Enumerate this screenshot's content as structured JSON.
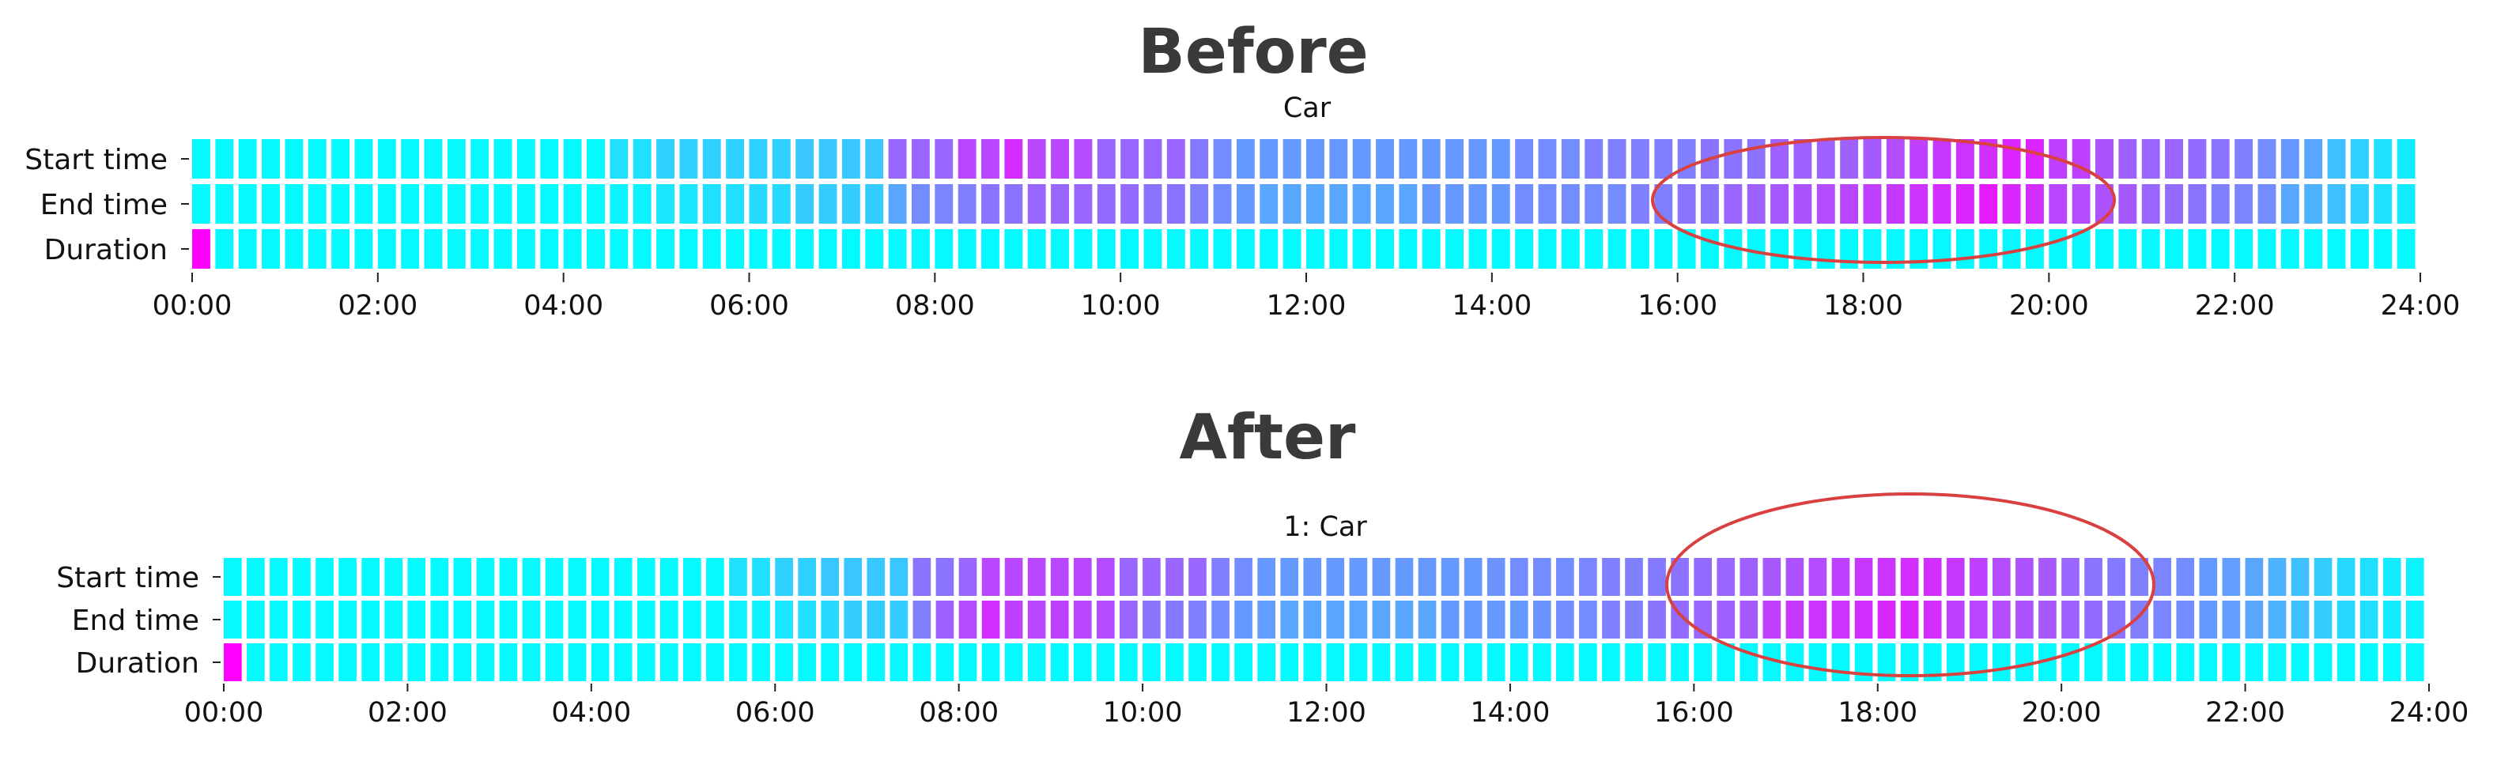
{
  "chart_data": [
    {
      "type": "heatmap",
      "title": "Before",
      "subtitle": "Car",
      "rows": [
        "Start time",
        "End time",
        "Duration"
      ],
      "xlabel": "",
      "ylabel": "",
      "x_tick_labels": [
        "00:00",
        "02:00",
        "04:00",
        "06:00",
        "08:00",
        "10:00",
        "12:00",
        "14:00",
        "16:00",
        "18:00",
        "20:00",
        "22:00",
        "24:00"
      ],
      "x_range": [
        "00:00",
        "24:00"
      ],
      "bins": 96,
      "colormap": "cool",
      "colors": {
        "low": "#00ffff",
        "high": "#ff00ff"
      },
      "highlight": {
        "shape": "ellipse",
        "color": "#d94040",
        "x_range": [
          "15:50",
          "20:45"
        ],
        "rows": [
          "Start time",
          "End time"
        ]
      },
      "values": {
        "Start time": [
          0.02,
          0.02,
          0.02,
          0.02,
          0.02,
          0.02,
          0.02,
          0.02,
          0.02,
          0.02,
          0.02,
          0.02,
          0.02,
          0.02,
          0.02,
          0.02,
          0.02,
          0.02,
          0.12,
          0.12,
          0.18,
          0.18,
          0.18,
          0.18,
          0.18,
          0.18,
          0.22,
          0.22,
          0.22,
          0.22,
          0.6,
          0.6,
          0.6,
          0.72,
          0.72,
          0.82,
          0.72,
          0.72,
          0.7,
          0.6,
          0.6,
          0.6,
          0.6,
          0.52,
          0.45,
          0.4,
          0.4,
          0.4,
          0.4,
          0.4,
          0.4,
          0.4,
          0.4,
          0.4,
          0.4,
          0.4,
          0.4,
          0.45,
          0.45,
          0.45,
          0.5,
          0.5,
          0.5,
          0.5,
          0.5,
          0.55,
          0.55,
          0.55,
          0.62,
          0.62,
          0.62,
          0.62,
          0.65,
          0.7,
          0.75,
          0.78,
          0.8,
          0.82,
          0.86,
          0.86,
          0.75,
          0.75,
          0.68,
          0.62,
          0.6,
          0.6,
          0.58,
          0.55,
          0.5,
          0.45,
          0.4,
          0.35,
          0.25,
          0.18,
          0.12,
          0.08
        ],
        "End time": [
          0.02,
          0.02,
          0.02,
          0.02,
          0.02,
          0.02,
          0.02,
          0.02,
          0.02,
          0.02,
          0.02,
          0.02,
          0.02,
          0.02,
          0.02,
          0.02,
          0.02,
          0.02,
          0.05,
          0.05,
          0.1,
          0.1,
          0.12,
          0.12,
          0.15,
          0.15,
          0.2,
          0.2,
          0.2,
          0.2,
          0.35,
          0.45,
          0.48,
          0.5,
          0.55,
          0.55,
          0.6,
          0.6,
          0.6,
          0.58,
          0.58,
          0.55,
          0.55,
          0.5,
          0.45,
          0.4,
          0.35,
          0.35,
          0.35,
          0.35,
          0.35,
          0.35,
          0.35,
          0.4,
          0.4,
          0.4,
          0.4,
          0.45,
          0.45,
          0.45,
          0.45,
          0.45,
          0.5,
          0.5,
          0.55,
          0.55,
          0.6,
          0.62,
          0.65,
          0.68,
          0.7,
          0.72,
          0.75,
          0.78,
          0.8,
          0.82,
          0.85,
          0.9,
          0.85,
          0.82,
          0.72,
          0.7,
          0.68,
          0.65,
          0.6,
          0.58,
          0.55,
          0.5,
          0.48,
          0.45,
          0.35,
          0.3,
          0.25,
          0.18,
          0.12,
          0.08
        ],
        "Duration": [
          1.0,
          0.02,
          0.02,
          0.02,
          0.02,
          0.02,
          0.02,
          0.02,
          0.02,
          0.02,
          0.02,
          0.02,
          0.02,
          0.02,
          0.02,
          0.02,
          0.02,
          0.02,
          0.02,
          0.02,
          0.02,
          0.02,
          0.02,
          0.02,
          0.02,
          0.02,
          0.02,
          0.02,
          0.02,
          0.02,
          0.02,
          0.02,
          0.02,
          0.02,
          0.02,
          0.02,
          0.02,
          0.02,
          0.02,
          0.02,
          0.02,
          0.02,
          0.02,
          0.02,
          0.02,
          0.02,
          0.02,
          0.02,
          0.02,
          0.02,
          0.02,
          0.02,
          0.02,
          0.02,
          0.02,
          0.02,
          0.02,
          0.02,
          0.02,
          0.02,
          0.02,
          0.02,
          0.02,
          0.02,
          0.02,
          0.02,
          0.02,
          0.02,
          0.02,
          0.02,
          0.02,
          0.02,
          0.02,
          0.02,
          0.02,
          0.02,
          0.02,
          0.02,
          0.02,
          0.02,
          0.02,
          0.02,
          0.02,
          0.02,
          0.02,
          0.02,
          0.02,
          0.02,
          0.02,
          0.02,
          0.02,
          0.02,
          0.02,
          0.02,
          0.02,
          0.02
        ]
      }
    },
    {
      "type": "heatmap",
      "title": "After",
      "subtitle": "1: Car",
      "rows": [
        "Start time",
        "End time",
        "Duration"
      ],
      "xlabel": "",
      "ylabel": "",
      "x_tick_labels": [
        "00:00",
        "02:00",
        "04:00",
        "06:00",
        "08:00",
        "10:00",
        "12:00",
        "14:00",
        "16:00",
        "18:00",
        "20:00",
        "22:00",
        "24:00"
      ],
      "x_range": [
        "00:00",
        "24:00"
      ],
      "bins": 96,
      "colormap": "cool",
      "colors": {
        "low": "#00ffff",
        "high": "#ff00ff"
      },
      "highlight": {
        "shape": "ellipse",
        "color": "#d94040",
        "x_range": [
          "15:40",
          "21:00"
        ],
        "rows": [
          "Start time",
          "End time",
          "Duration"
        ]
      },
      "values": {
        "Start time": [
          0.02,
          0.02,
          0.02,
          0.02,
          0.02,
          0.02,
          0.02,
          0.02,
          0.02,
          0.02,
          0.02,
          0.02,
          0.02,
          0.02,
          0.02,
          0.02,
          0.02,
          0.02,
          0.02,
          0.02,
          0.02,
          0.02,
          0.12,
          0.12,
          0.18,
          0.18,
          0.22,
          0.22,
          0.22,
          0.22,
          0.55,
          0.55,
          0.6,
          0.72,
          0.72,
          0.72,
          0.72,
          0.72,
          0.7,
          0.6,
          0.6,
          0.6,
          0.6,
          0.5,
          0.45,
          0.4,
          0.4,
          0.4,
          0.4,
          0.4,
          0.4,
          0.4,
          0.4,
          0.4,
          0.4,
          0.42,
          0.45,
          0.45,
          0.45,
          0.48,
          0.5,
          0.5,
          0.52,
          0.55,
          0.58,
          0.6,
          0.62,
          0.65,
          0.68,
          0.7,
          0.75,
          0.78,
          0.8,
          0.82,
          0.82,
          0.78,
          0.75,
          0.7,
          0.68,
          0.65,
          0.6,
          0.55,
          0.52,
          0.5,
          0.48,
          0.45,
          0.4,
          0.38,
          0.35,
          0.3,
          0.25,
          0.2,
          0.15,
          0.12,
          0.08,
          0.05
        ],
        "End time": [
          0.02,
          0.02,
          0.02,
          0.02,
          0.02,
          0.02,
          0.02,
          0.02,
          0.02,
          0.02,
          0.02,
          0.02,
          0.02,
          0.02,
          0.02,
          0.02,
          0.02,
          0.02,
          0.02,
          0.02,
          0.02,
          0.02,
          0.05,
          0.05,
          0.1,
          0.12,
          0.15,
          0.2,
          0.2,
          0.2,
          0.5,
          0.62,
          0.7,
          0.82,
          0.75,
          0.72,
          0.75,
          0.72,
          0.7,
          0.6,
          0.55,
          0.52,
          0.5,
          0.45,
          0.4,
          0.38,
          0.35,
          0.35,
          0.35,
          0.35,
          0.35,
          0.35,
          0.35,
          0.4,
          0.4,
          0.4,
          0.4,
          0.42,
          0.45,
          0.45,
          0.5,
          0.5,
          0.55,
          0.58,
          0.6,
          0.62,
          0.65,
          0.75,
          0.78,
          0.8,
          0.8,
          0.82,
          0.85,
          0.85,
          0.82,
          0.75,
          0.72,
          0.7,
          0.68,
          0.65,
          0.62,
          0.58,
          0.55,
          0.5,
          0.48,
          0.45,
          0.4,
          0.38,
          0.35,
          0.3,
          0.25,
          0.2,
          0.15,
          0.12,
          0.08,
          0.05
        ],
        "Duration": [
          1.0,
          0.02,
          0.02,
          0.02,
          0.02,
          0.02,
          0.02,
          0.02,
          0.02,
          0.02,
          0.02,
          0.02,
          0.02,
          0.02,
          0.02,
          0.02,
          0.02,
          0.02,
          0.02,
          0.02,
          0.02,
          0.02,
          0.02,
          0.02,
          0.02,
          0.02,
          0.02,
          0.02,
          0.02,
          0.02,
          0.02,
          0.02,
          0.02,
          0.02,
          0.02,
          0.02,
          0.02,
          0.02,
          0.02,
          0.02,
          0.02,
          0.02,
          0.02,
          0.02,
          0.02,
          0.02,
          0.02,
          0.02,
          0.02,
          0.02,
          0.02,
          0.02,
          0.02,
          0.02,
          0.02,
          0.02,
          0.02,
          0.02,
          0.02,
          0.02,
          0.02,
          0.02,
          0.02,
          0.02,
          0.02,
          0.02,
          0.02,
          0.02,
          0.02,
          0.02,
          0.02,
          0.02,
          0.02,
          0.02,
          0.02,
          0.02,
          0.02,
          0.02,
          0.02,
          0.02,
          0.02,
          0.02,
          0.02,
          0.02,
          0.02,
          0.02,
          0.02,
          0.02,
          0.02,
          0.02,
          0.02,
          0.02,
          0.02,
          0.02,
          0.02,
          0.02
        ]
      }
    }
  ]
}
